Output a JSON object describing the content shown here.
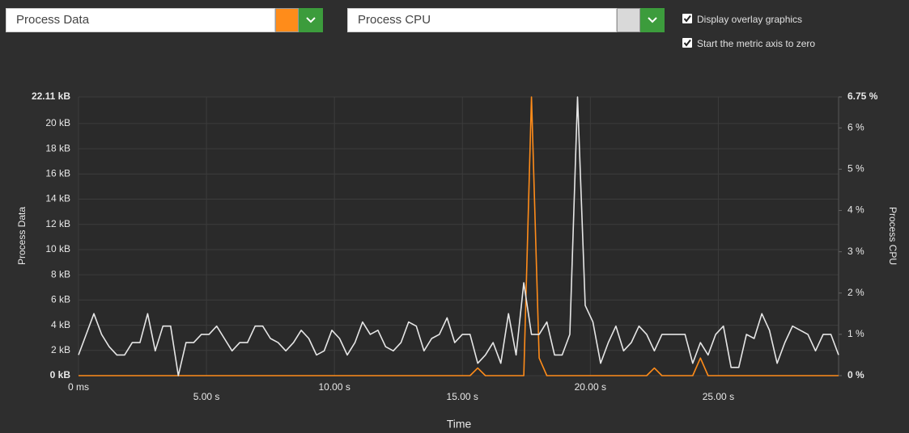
{
  "controls": {
    "metric_1": {
      "label": "Process Data",
      "color": "#ff8c1a"
    },
    "metric_2": {
      "label": "Process CPU",
      "color": "#d9d9d9"
    },
    "options": [
      {
        "label": "Display overlay graphics",
        "checked": true
      },
      {
        "label": "Start the metric axis to zero",
        "checked": true
      }
    ]
  },
  "chart_data": {
    "type": "line",
    "xlabel": "Time",
    "ylabel": "Process Data",
    "y2label": "Process CPU",
    "grid": true,
    "xlim": [
      0,
      29.7
    ],
    "xticks": [
      {
        "value": 0,
        "label": "0 ms"
      },
      {
        "value": 5,
        "label": "5.00 s"
      },
      {
        "value": 10,
        "label": "10.00 s"
      },
      {
        "value": 15,
        "label": "15.00 s"
      },
      {
        "value": 20,
        "label": "20.00 s"
      },
      {
        "value": 25,
        "label": "25.00 s"
      }
    ],
    "ylim": [
      0,
      22.11
    ],
    "yticks": [
      {
        "value": 0,
        "label": "0 kB"
      },
      {
        "value": 2,
        "label": "2 kB"
      },
      {
        "value": 4,
        "label": "4 kB"
      },
      {
        "value": 6,
        "label": "6 kB"
      },
      {
        "value": 8,
        "label": "8 kB"
      },
      {
        "value": 10,
        "label": "10 kB"
      },
      {
        "value": 12,
        "label": "12 kB"
      },
      {
        "value": 14,
        "label": "14 kB"
      },
      {
        "value": 16,
        "label": "16 kB"
      },
      {
        "value": 18,
        "label": "18 kB"
      },
      {
        "value": 20,
        "label": "20 kB"
      },
      {
        "value": 22.11,
        "label": "22.11 kB"
      }
    ],
    "y2lim": [
      0,
      6.75
    ],
    "y2ticks": [
      {
        "value": 0,
        "label": "0 %"
      },
      {
        "value": 1,
        "label": "1 %"
      },
      {
        "value": 2,
        "label": "2 %"
      },
      {
        "value": 3,
        "label": "3 %"
      },
      {
        "value": 4,
        "label": "4 %"
      },
      {
        "value": 5,
        "label": "5 %"
      },
      {
        "value": 6,
        "label": "6 %"
      },
      {
        "value": 6.75,
        "label": "6.75 %"
      }
    ],
    "x": [
      0,
      0.3,
      0.6,
      0.9,
      1.2,
      1.5,
      1.8,
      2.1,
      2.4,
      2.7,
      3,
      3.3,
      3.6,
      3.9,
      4.2,
      4.5,
      4.8,
      5.1,
      5.4,
      5.7,
      6,
      6.3,
      6.6,
      6.9,
      7.2,
      7.5,
      7.8,
      8.1,
      8.4,
      8.7,
      9,
      9.3,
      9.6,
      9.9,
      10.2,
      10.5,
      10.8,
      11.1,
      11.4,
      11.7,
      12,
      12.3,
      12.6,
      12.9,
      13.2,
      13.5,
      13.8,
      14.1,
      14.4,
      14.7,
      15,
      15.3,
      15.6,
      15.9,
      16.2,
      16.5,
      16.8,
      17.1,
      17.4,
      17.7,
      18,
      18.3,
      18.6,
      18.9,
      19.2,
      19.5,
      19.8,
      20.1,
      20.4,
      20.7,
      21,
      21.3,
      21.6,
      21.9,
      22.2,
      22.5,
      22.8,
      23.1,
      23.4,
      23.7,
      24,
      24.3,
      24.6,
      24.9,
      25.2,
      25.5,
      25.8,
      26.1,
      26.4,
      26.7,
      27,
      27.3,
      27.6,
      27.9,
      28.2,
      28.5,
      28.8,
      29.1,
      29.4,
      29.7
    ],
    "series": [
      {
        "color": "#ff8c1a",
        "values": [
          0,
          0,
          0,
          0,
          0,
          0,
          0,
          0,
          0,
          0,
          0,
          0,
          0,
          0,
          0,
          0,
          0,
          0,
          0,
          0,
          0,
          0,
          0,
          0,
          0,
          0,
          0,
          0,
          0,
          0,
          0,
          0,
          0,
          0,
          0,
          0,
          0,
          0,
          0,
          0,
          0,
          0,
          0,
          0,
          0,
          0,
          0,
          0,
          0,
          0,
          0,
          0,
          0.6,
          0,
          0,
          0,
          0,
          0,
          0,
          22.11,
          1.4,
          0,
          0,
          0,
          0,
          0,
          0,
          0,
          0,
          0,
          0,
          0,
          0,
          0,
          0,
          0.6,
          0,
          0,
          0,
          0,
          0,
          1.4,
          0,
          0,
          0,
          0,
          0,
          0,
          0,
          0,
          0,
          0,
          0,
          0,
          0,
          0,
          0,
          0,
          0,
          0
        ]
      },
      {
        "color": "#e6e6e6",
        "axis": "y2",
        "values": [
          0.5,
          1.0,
          1.5,
          1.0,
          0.7,
          0.5,
          0.5,
          0.8,
          0.8,
          1.5,
          0.6,
          1.2,
          1.2,
          0.0,
          0.8,
          0.8,
          1.0,
          1.0,
          1.2,
          0.9,
          0.6,
          0.8,
          0.8,
          1.2,
          1.2,
          0.9,
          0.8,
          0.6,
          0.8,
          1.1,
          0.9,
          0.5,
          0.6,
          1.1,
          0.9,
          0.5,
          0.8,
          1.3,
          1.0,
          1.1,
          0.7,
          0.6,
          0.8,
          1.3,
          1.2,
          0.6,
          0.9,
          1.0,
          1.4,
          0.8,
          1.0,
          1.0,
          0.3,
          0.5,
          0.8,
          0.3,
          1.5,
          0.5,
          2.25,
          1.0,
          1.0,
          1.3,
          0.5,
          0.5,
          1.0,
          6.75,
          1.7,
          1.3,
          0.3,
          0.8,
          1.2,
          0.6,
          0.8,
          1.2,
          1.0,
          0.6,
          1.0,
          1.0,
          1.0,
          1.0,
          0.3,
          0.8,
          0.5,
          1.0,
          1.2,
          0.2,
          0.2,
          1.0,
          0.9,
          1.5,
          1.1,
          0.3,
          0.8,
          1.2,
          1.1,
          1.0,
          0.6,
          1.0,
          1.0,
          0.5
        ]
      }
    ]
  }
}
